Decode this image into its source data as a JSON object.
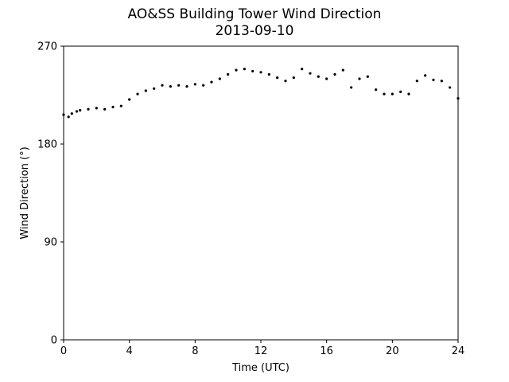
{
  "chart_data": {
    "type": "scatter",
    "title": "AO&SS Building Tower Wind Direction",
    "subtitle": "2013-09-10",
    "xlabel": "Time (UTC)",
    "ylabel": "Wind Direction (°)",
    "xlim": [
      0,
      24
    ],
    "ylim": [
      0,
      270
    ],
    "xticks": [
      0,
      4,
      8,
      12,
      16,
      20,
      24
    ],
    "yticks": [
      0,
      90,
      180,
      270
    ],
    "grid": false,
    "legend": "none",
    "marker_color": "#000000",
    "series": [
      {
        "x": [
          0.0,
          0.3,
          0.5,
          0.8,
          1.0,
          1.5,
          2.0,
          2.5,
          3.0,
          3.5,
          4.0,
          4.5,
          5.0,
          5.5,
          6.0,
          6.5,
          7.0,
          7.5,
          8.0,
          8.5,
          9.0,
          9.5,
          10.0,
          10.5,
          11.0,
          11.5,
          12.0,
          12.5,
          13.0,
          13.5,
          14.0,
          14.5,
          15.0,
          15.5,
          16.0,
          16.5,
          17.0,
          17.5,
          18.0,
          18.5,
          19.0,
          19.5,
          20.0,
          20.5,
          21.0,
          21.5,
          22.0,
          22.5,
          23.0,
          23.5,
          24.0
        ],
        "y": [
          207,
          205,
          208,
          210,
          211,
          212,
          213,
          212,
          214,
          215,
          221,
          226,
          229,
          231,
          234,
          233,
          234,
          233,
          235,
          234,
          237,
          240,
          244,
          248,
          249,
          247,
          246,
          244,
          241,
          238,
          241,
          249,
          245,
          242,
          240,
          244,
          248,
          232,
          240,
          242,
          230,
          226,
          226,
          228,
          226,
          238,
          243,
          239,
          238,
          232,
          222
        ]
      }
    ]
  }
}
